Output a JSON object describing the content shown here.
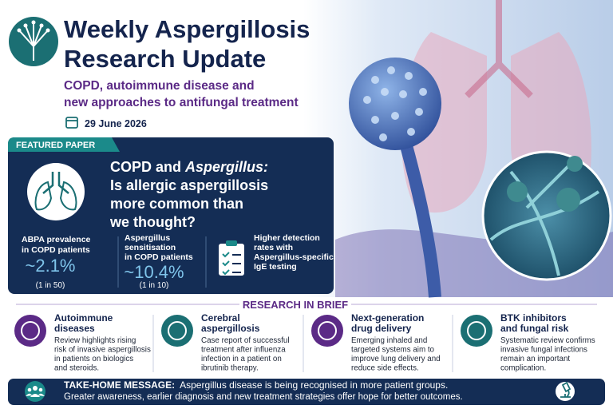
{
  "header": {
    "title": [
      "Weekly Aspergillosis",
      "Research Update"
    ],
    "subtitle": [
      "COPD, autoimmune disease and",
      "new approaches to antifungal treatment"
    ],
    "date": "29 June 2026"
  },
  "featured": {
    "tag": "FEATURED PAPER",
    "headline": [
      "COPD and",
      "Aspergillus:",
      "Is allergic aspergillosis",
      "more common than",
      "we thought?"
    ],
    "stats": [
      {
        "label": [
          "ABPA prevalence",
          "in COPD patients"
        ],
        "value": "~2.1%",
        "note": "(1 in 50)"
      },
      {
        "label": [
          "Aspergillus",
          "sensitisation",
          "in COPD patients"
        ],
        "value": "~10.4%",
        "note": "(1 in 10)"
      },
      {
        "label": [
          "Higher detection",
          "rates with",
          "Aspergillus-specific",
          "IgE testing"
        ]
      }
    ]
  },
  "brief": {
    "heading": "RESEARCH IN BRIEF",
    "items": [
      {
        "title": [
          "Autoimmune",
          "diseases"
        ],
        "text": [
          "Review highlights rising",
          "risk of invasive aspergillosis",
          "in patients on biologics",
          "and steroids."
        ]
      },
      {
        "title": [
          "Cerebral",
          "aspergillosis"
        ],
        "text": [
          "Case report of successful",
          "treatment after influenza",
          "infection in a patient on",
          "ibrutinib therapy."
        ]
      },
      {
        "title": [
          "Next-generation",
          "drug delivery"
        ],
        "text": [
          "Emerging inhaled and",
          "targeted systems aim to",
          "improve lung delivery and",
          "reduce side effects."
        ]
      },
      {
        "title": [
          "BTK inhibitors",
          "and fungal risk"
        ],
        "text": [
          "Systematic review confirms",
          "invasive fungal infections",
          "remain an important",
          "complication."
        ]
      }
    ]
  },
  "takehome": {
    "label": "TAKE-HOME MESSAGE:",
    "text": [
      "Aspergillus disease is being recognised in more patient groups.",
      "Greater awareness, earlier diagnosis and new treatment strategies offer hope for better outcomes."
    ]
  }
}
